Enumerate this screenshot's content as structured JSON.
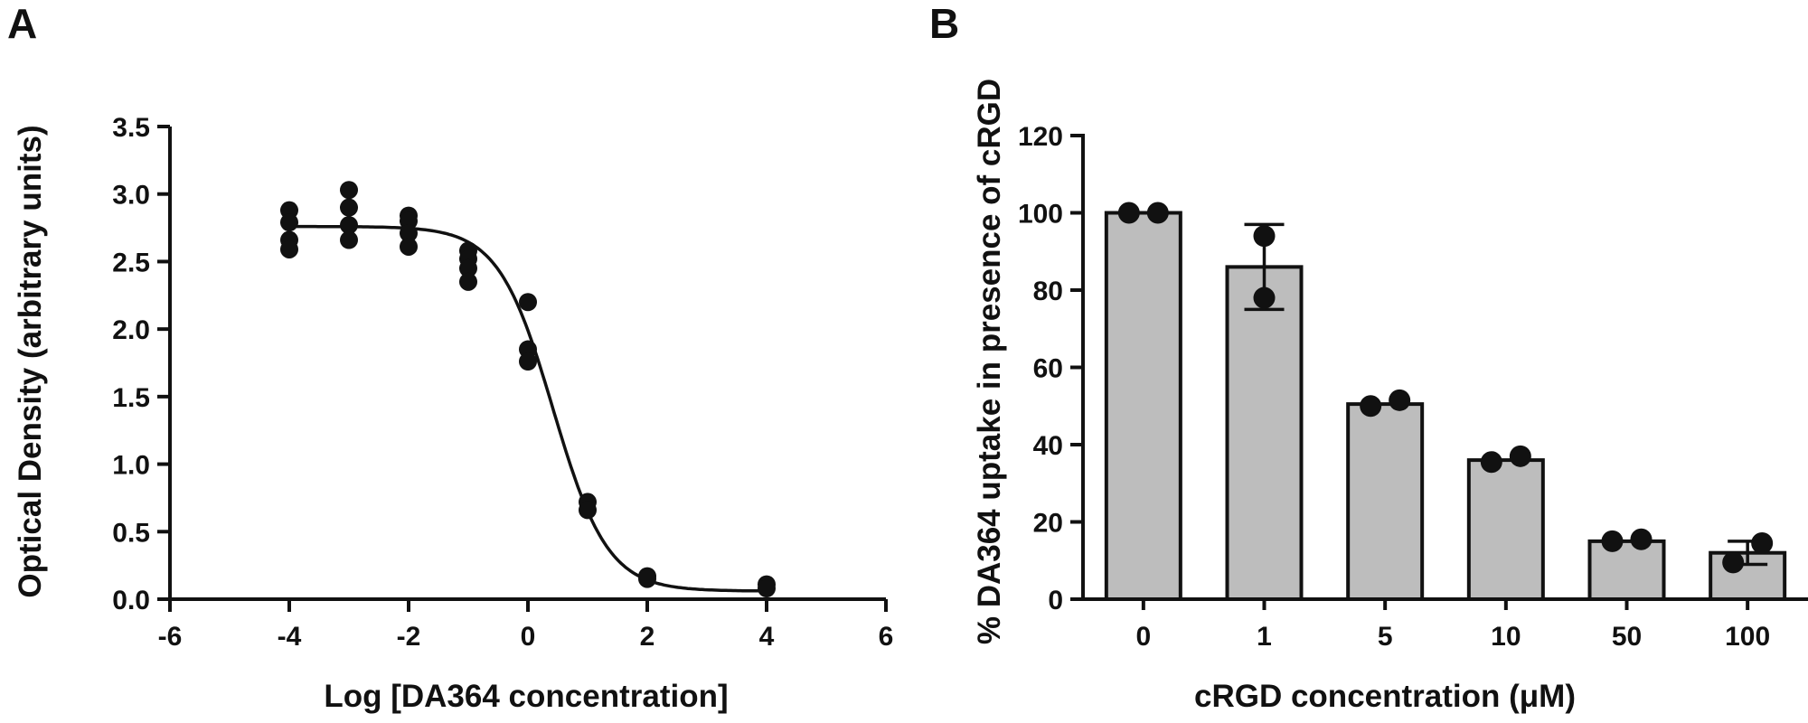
{
  "chart_data": [
    {
      "panel": "A",
      "type": "scatter",
      "xlabel": "Log [DA364 concentration]",
      "ylabel": "Optical Density (arbitrary units)",
      "xlim": [
        -6,
        6
      ],
      "ylim": [
        0,
        3.5
      ],
      "xticks": [
        "-6",
        "-4",
        "-2",
        "0",
        "2",
        "4",
        "6"
      ],
      "yticks": [
        "0.0",
        "0.5",
        "1.0",
        "1.5",
        "2.0",
        "2.5",
        "3.0",
        "3.5"
      ],
      "points": [
        {
          "x": -4,
          "y": 2.88
        },
        {
          "x": -4,
          "y": 2.79
        },
        {
          "x": -4,
          "y": 2.66
        },
        {
          "x": -4,
          "y": 2.59
        },
        {
          "x": -3,
          "y": 3.03
        },
        {
          "x": -3,
          "y": 2.9
        },
        {
          "x": -3,
          "y": 2.77
        },
        {
          "x": -3,
          "y": 2.66
        },
        {
          "x": -2,
          "y": 2.84
        },
        {
          "x": -2,
          "y": 2.8
        },
        {
          "x": -2,
          "y": 2.71
        },
        {
          "x": -2,
          "y": 2.61
        },
        {
          "x": -1,
          "y": 2.58
        },
        {
          "x": -1,
          "y": 2.52
        },
        {
          "x": -1,
          "y": 2.45
        },
        {
          "x": -1,
          "y": 2.35
        },
        {
          "x": 0,
          "y": 2.2
        },
        {
          "x": 0,
          "y": 1.85
        },
        {
          "x": 0,
          "y": 1.76
        },
        {
          "x": 1,
          "y": 0.72
        },
        {
          "x": 1,
          "y": 0.66
        },
        {
          "x": 2,
          "y": 0.17
        },
        {
          "x": 2,
          "y": 0.15
        },
        {
          "x": 4,
          "y": 0.11
        },
        {
          "x": 4,
          "y": 0.08
        }
      ],
      "fit": {
        "bottom": 0.06,
        "top": 2.76,
        "logIC50": 0.42,
        "hill": -0.95
      }
    },
    {
      "panel": "B",
      "type": "bar",
      "xlabel": "cRGD concentration (μM)",
      "ylabel": "% DA364 uptake in presence of cRGD",
      "ylim": [
        0,
        120
      ],
      "yticks": [
        "0",
        "20",
        "40",
        "60",
        "80",
        "100",
        "120"
      ],
      "categories": [
        "0",
        "1",
        "5",
        "10",
        "50",
        "100"
      ],
      "values": [
        100,
        86,
        50.5,
        36,
        15,
        12
      ],
      "error": [
        0,
        11,
        0,
        0,
        0,
        3
      ],
      "points": [
        [
          100,
          100
        ],
        [
          94,
          78
        ],
        [
          50,
          51.5
        ],
        [
          35.5,
          37
        ],
        [
          15,
          15.5
        ],
        [
          9.5,
          14.5
        ]
      ],
      "bar_color": "#bdbdbd"
    }
  ]
}
